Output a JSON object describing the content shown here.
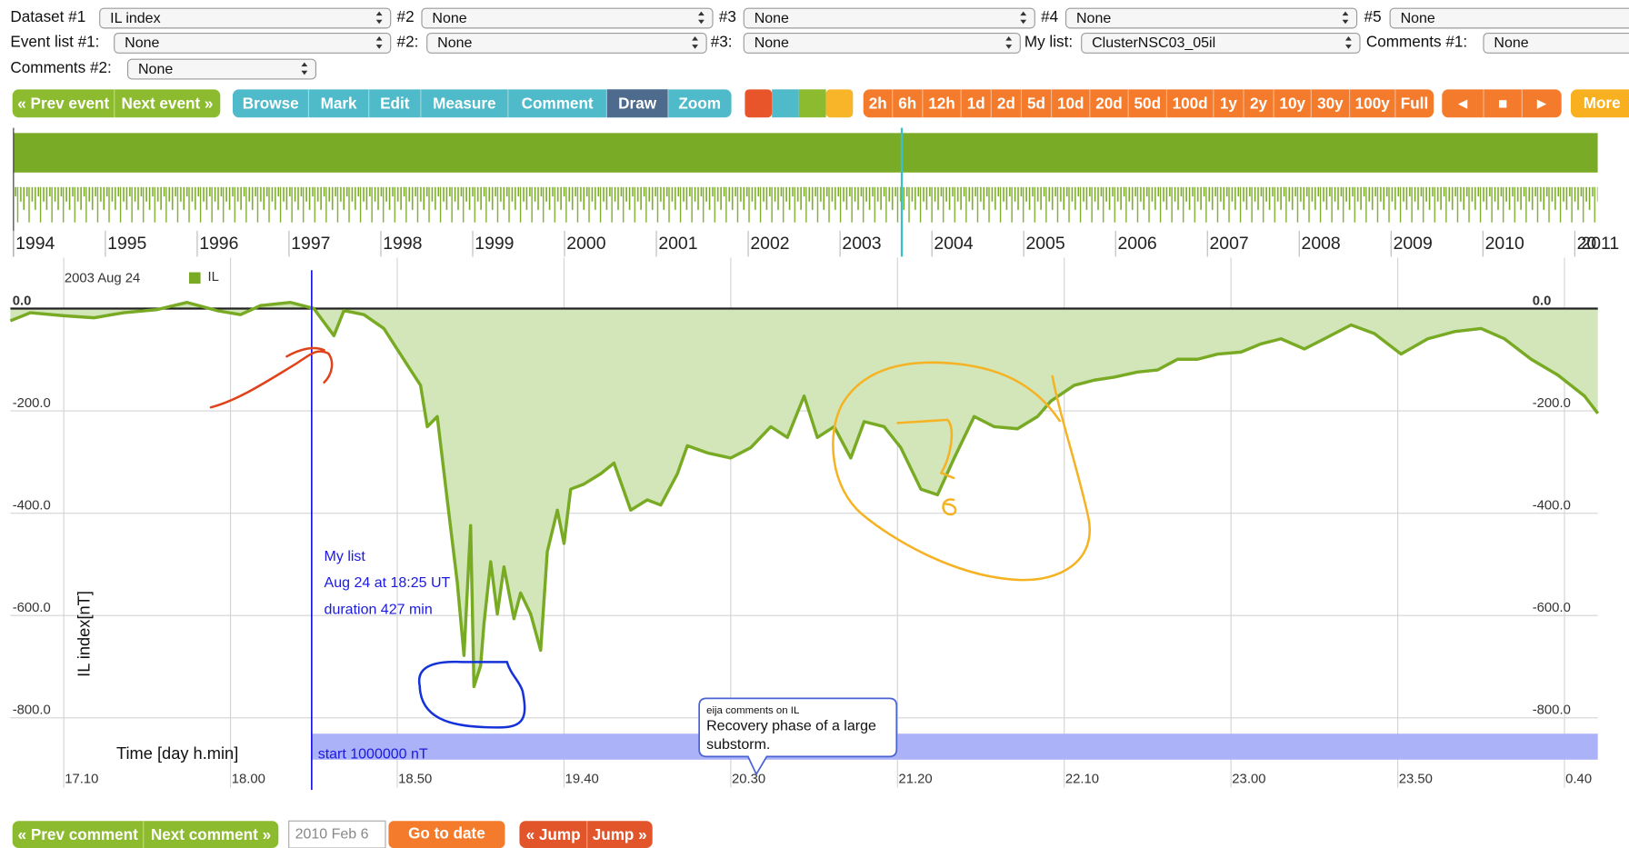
{
  "selectors": [
    [
      {
        "label": "Dataset #1",
        "value": "IL index"
      },
      {
        "label": "#2",
        "value": "None"
      },
      {
        "label": "#3",
        "value": "None"
      },
      {
        "label": "#4",
        "value": "None"
      },
      {
        "label": "#5",
        "value": "None"
      }
    ],
    [
      {
        "label": "Event list #1:",
        "value": "None"
      },
      {
        "label": "#2:",
        "value": "None"
      },
      {
        "label": "#3:",
        "value": "None"
      },
      {
        "label": "My list:",
        "value": "ClusterNSC03_05il"
      },
      {
        "label": "Comments #1:",
        "value": "None"
      }
    ],
    [
      {
        "label": "Comments #2:",
        "value": "None"
      }
    ]
  ],
  "toolbar": {
    "event_nav": [
      "« Prev event",
      "Next event »"
    ],
    "modes": [
      "Browse",
      "Mark",
      "Edit",
      "Measure",
      "Comment",
      "Draw",
      "Zoom"
    ],
    "ranges": [
      "2h",
      "6h",
      "12h",
      "1d",
      "2d",
      "5d",
      "10d",
      "20d",
      "50d",
      "100d",
      "1y",
      "2y",
      "10y",
      "30y",
      "100y",
      "Full"
    ],
    "playback": [
      "◄",
      "■",
      "►"
    ],
    "more": "More"
  },
  "overview": {
    "xticks": [
      1994,
      1995,
      1996,
      1997,
      1998,
      1999,
      2000,
      2001,
      2002,
      2003,
      2004,
      2005,
      2006,
      2007,
      2008,
      2009,
      2010,
      2011
    ],
    "color": "#7aab26"
  },
  "chart_data": {
    "type": "line",
    "title": "2003 Aug 24",
    "xlabel": "Time [day h.min]",
    "ylabel": "IL index[nT]",
    "x": [
      1014,
      1020,
      1030,
      1039,
      1048,
      1058,
      1067,
      1076,
      1083,
      1089,
      1098,
      1105,
      1111,
      1114,
      1120,
      1126,
      1133,
      1137,
      1139,
      1142,
      1145,
      1148,
      1150,
      1152,
      1153,
      1155,
      1156,
      1158,
      1160,
      1162,
      1165,
      1167,
      1170,
      1173,
      1175,
      1178,
      1180,
      1182,
      1186,
      1191,
      1195,
      1200,
      1205,
      1209,
      1214,
      1217,
      1223,
      1230,
      1236,
      1242,
      1247,
      1252,
      1256,
      1261,
      1266,
      1270,
      1276,
      1281,
      1287,
      1292,
      1297,
      1303,
      1309,
      1316,
      1322,
      1326,
      1333,
      1339,
      1345,
      1352,
      1358,
      1364,
      1370,
      1376,
      1383,
      1389,
      1395,
      1402,
      1408,
      1416,
      1423,
      1431,
      1439,
      1447,
      1455,
      1462,
      1470,
      1478,
      1486,
      1490
    ],
    "series": [
      {
        "name": "IL",
        "color": "#78aa24",
        "fill": "#d3e6b9",
        "values": [
          -24,
          -8,
          -14,
          -18,
          -8,
          -2,
          12,
          -4,
          -12,
          6,
          12,
          0,
          -53,
          -4,
          -12,
          -39,
          -110,
          -150,
          -231,
          -211,
          -374,
          -536,
          -678,
          -424,
          -739,
          -698,
          -617,
          -495,
          -597,
          -505,
          -606,
          -556,
          -597,
          -668,
          -475,
          -394,
          -459,
          -353,
          -343,
          -323,
          -302,
          -394,
          -374,
          -384,
          -323,
          -268,
          -282,
          -292,
          -272,
          -231,
          -252,
          -171,
          -252,
          -231,
          -292,
          -221,
          -231,
          -272,
          -353,
          -364,
          -292,
          -211,
          -231,
          -235,
          -211,
          -181,
          -150,
          -140,
          -134,
          -124,
          -120,
          -99,
          -99,
          -89,
          -85,
          -69,
          -59,
          -79,
          -59,
          -32,
          -49,
          -89,
          -59,
          -45,
          -39,
          -59,
          -99,
          -130,
          -171,
          -205
        ]
      }
    ],
    "xlim": [
      1014,
      1490
    ],
    "xticks": [
      {
        "value": 1030,
        "label": "17.10"
      },
      {
        "value": 1080,
        "label": "18.00"
      },
      {
        "value": 1130,
        "label": "18.50"
      },
      {
        "value": 1180,
        "label": "19.40"
      },
      {
        "value": 1230,
        "label": "20.30"
      },
      {
        "value": 1280,
        "label": "21.20"
      },
      {
        "value": 1330,
        "label": "22.10"
      },
      {
        "value": 1380,
        "label": "23.00"
      },
      {
        "value": 1430,
        "label": "23.50"
      },
      {
        "value": 1480,
        "label": "0.40"
      }
    ],
    "ylim": [
      -900,
      75
    ],
    "yticks": [
      {
        "value": 0,
        "label": "0.0"
      },
      {
        "value": -200,
        "label": "-200.0"
      },
      {
        "value": -400,
        "label": "-400.0"
      },
      {
        "value": -600,
        "label": "-600.0"
      },
      {
        "value": -800,
        "label": "-800.0"
      }
    ],
    "grid": true
  },
  "annotations": {
    "my_list": [
      "My list",
      "Aug 24 at 18:25 UT",
      "duration 427 min"
    ],
    "band_label": "start 1000000 nT",
    "comment": {
      "author": "eija comments on IL",
      "lines": [
        "Recovery phase of a large",
        "substorm."
      ]
    }
  },
  "footer": {
    "comment_nav": [
      "« Prev comment",
      "Next comment »"
    ],
    "date_input": "2010 Feb 6",
    "go": "Go to date",
    "jump": [
      "« Jump",
      "Jump »"
    ]
  }
}
